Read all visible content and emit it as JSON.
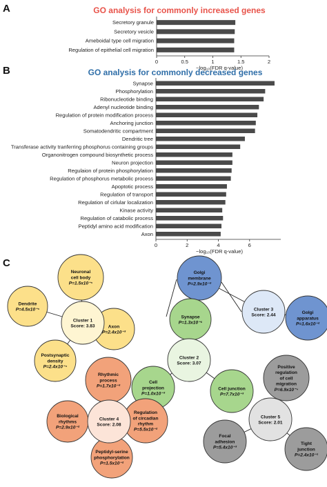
{
  "panels": {
    "a": "A",
    "b": "B",
    "c": "C"
  },
  "chart_data": [
    {
      "type": "bar",
      "orientation": "horizontal",
      "title": "GO analysis for commonly increased genes",
      "title_color": "#e8534a",
      "xlabel": "−log₁₀(FDR q-value)",
      "xlim": [
        0,
        2
      ],
      "xticks": [
        "0",
        "0.5",
        "1",
        "1.5",
        "2"
      ],
      "categories": [
        "Secretory granule",
        "Secretory vesicle",
        "Ameboidal type cell migration",
        "Regulation of epithelial cell migration"
      ],
      "values": [
        1.4,
        1.39,
        1.38,
        1.38
      ]
    },
    {
      "type": "bar",
      "orientation": "horizontal",
      "title": "GO analysis for commonly decreased genes",
      "title_color": "#2f6ea8",
      "xlabel": "−log₁₀(FDR q-value)",
      "xlim": [
        0,
        8
      ],
      "xticks": [
        "0",
        "2",
        "4",
        "6"
      ],
      "categories": [
        "Synapse",
        "Phosphorylation",
        "Ribonucleotide binding",
        "Adenyl nucleotide binding",
        "Regulation of protein modification process",
        "Anchoring junction",
        "Somatodendritic compartment",
        "Dendritic tree",
        "Transferase activity tranferring phosphorus containing groups",
        "Organonitrogen compound biosynthetic process",
        "Neuron projection",
        "Regulaion of protein phosphorylation",
        "Regulation of phosphorus metabolic process",
        "Apoptotic process",
        "Regulation of transport",
        "Regulation of cirlular localization",
        "Kinase activity",
        "Regulation of catabolic process",
        "Peptidyl amino acid modification",
        "Axon"
      ],
      "values": [
        7.6,
        7.0,
        6.9,
        6.6,
        6.5,
        6.4,
        6.35,
        5.7,
        5.4,
        4.9,
        4.9,
        4.85,
        4.8,
        4.55,
        4.5,
        4.45,
        4.25,
        4.3,
        4.2,
        4.15
      ]
    }
  ],
  "network": {
    "colors": {
      "yellow": "#fce08a",
      "yellow_light": "#fef5d2",
      "blue": "#6f94d0",
      "blue_light": "#dde8f7",
      "green": "#a7d68d",
      "green_light": "#e9f5e1",
      "orange": "#f2a27a",
      "orange_light": "#fce4d8",
      "gray": "#9c9c9c",
      "gray_light": "#e2e2e2"
    },
    "clusters": [
      {
        "name": "Cluster 1",
        "score": "Score: 3.83",
        "members": [
          {
            "label": [
              "Neuronal",
              "cell body"
            ],
            "p": "P=1.5x10⁻⁵"
          },
          {
            "label": [
              "Dendrite"
            ],
            "p": "P=4.5x10⁻⁵"
          },
          {
            "label": [
              "Axon"
            ],
            "p": "P=2.4x10⁻³"
          },
          {
            "label": [
              "Postsynaptic",
              "density"
            ],
            "p": "P=2.4x10⁻⁴"
          }
        ]
      },
      {
        "name": "Cluster 3",
        "score": "Score: 2.44",
        "members": [
          {
            "label": [
              "Golgi",
              "membrane"
            ],
            "p": "P=2.9x10⁻³"
          },
          {
            "label": [
              "Golgi",
              "apparatus"
            ],
            "p": "P=1.6x10⁻²"
          }
        ]
      },
      {
        "name": "Cluster 2",
        "score": "Score: 3.07",
        "members": [
          {
            "label": [
              "Synapse"
            ],
            "p": "P=1.3x10⁻⁶"
          },
          {
            "label": [
              "Cell",
              "projection"
            ],
            "p": "P=1.0x10⁻³"
          },
          {
            "label": [
              "Cell junction"
            ],
            "p": "P=7.7x10⁻³"
          }
        ]
      },
      {
        "name": "Cluster 4",
        "score": "Score: 2.08",
        "members": [
          {
            "label": [
              "Rhythmic",
              "process"
            ],
            "p": "P=1.7x10⁻³"
          },
          {
            "label": [
              "Biological",
              "rhythms"
            ],
            "p": "P=2.9x10⁻²"
          },
          {
            "label": [
              "Regulation",
              "of circadian",
              "rhythm"
            ],
            "p": "P=5.5x10⁻²"
          },
          {
            "label": [
              "Peptidyl-serine",
              "phosphorylation"
            ],
            "p": "P=1.5x10⁻²"
          }
        ]
      },
      {
        "name": "Cluster 5",
        "score": "Score: 2.01",
        "members": [
          {
            "label": [
              "Positive",
              "regulation",
              "of cell",
              "migration"
            ],
            "p": "P=6.9x10⁻⁴"
          },
          {
            "label": [
              "Focal",
              "adhesion"
            ],
            "p": "P=5.4x10⁻³"
          },
          {
            "label": [
              "Tight",
              "junction"
            ],
            "p": "P=2.4x10⁻¹"
          }
        ]
      }
    ]
  }
}
